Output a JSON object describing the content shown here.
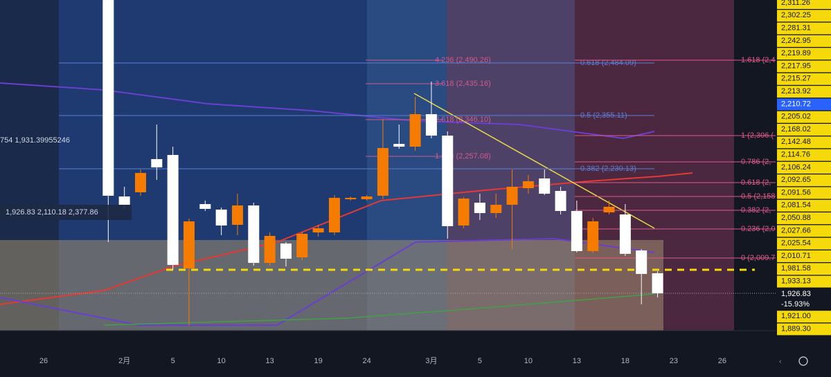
{
  "chart_data": {
    "type": "candlestick",
    "categories": [
      "26",
      null,
      null,
      null,
      null,
      "2月",
      null,
      null,
      "5",
      null,
      null,
      "10",
      null,
      null,
      "13",
      null,
      null,
      "19",
      null,
      null,
      "24",
      null,
      null,
      null,
      "3月",
      null,
      null,
      "5",
      null,
      null,
      "10",
      null,
      null,
      "13",
      null,
      null,
      "18",
      null,
      null,
      "23",
      null,
      null,
      "26"
    ],
    "open": [
      null,
      null,
      null,
      null,
      2361.4,
      2070.3,
      2076.5,
      2125.7,
      2131.8,
      1963.7,
      2059.0,
      2050.9,
      2028.3,
      2057.0,
      1971.9,
      2000.6,
      1980.1,
      2017.0,
      2017.0,
      2066.2,
      2066.2,
      2071.4,
      2148.2,
      2144.1,
      2192.3,
      2160.5,
      2027.3,
      2061.1,
      2045.7,
      2058.0,
      2082.6,
      2097.0,
      2078.5,
      2048.8,
      1989.4,
      2046.7,
      2043.7,
      1990.4,
      1956.5,
      null,
      null,
      null,
      null
    ],
    "high": [
      null,
      null,
      null,
      null,
      2361.4,
      2084.7,
      2110.3,
      2176.9,
      2144.1,
      2037.5,
      2064.2,
      2053.9,
      2074.4,
      2061.1,
      2017.0,
      2002.7,
      2018.0,
      2028.3,
      2072.4,
      2070.3,
      2072.4,
      2185.1,
      2176.9,
      2217.9,
      2240.5,
      2166.7,
      2069.3,
      2074.4,
      2074.4,
      2110.3,
      2102.1,
      2110.3,
      2084.7,
      2064.2,
      2038.5,
      2064.2,
      2059.0,
      1992.4,
      1959.6,
      null,
      null,
      null,
      null
    ],
    "low": [
      null,
      null,
      null,
      null,
      2002.7,
      2051.9,
      2071.4,
      2094.9,
      1961.7,
      1879.7,
      2048.8,
      2012.9,
      2012.9,
      1967.8,
      1967.8,
      1966.8,
      1976.0,
      2010.9,
      2012.9,
      2064.2,
      2064.2,
      2066.2,
      2141.0,
      2138.0,
      2156.4,
      2007.8,
      2023.2,
      2035.5,
      2038.5,
      1992.4,
      2074.4,
      2072.4,
      2043.7,
      1987.3,
      1986.3,
      2043.7,
      1982.2,
      1910.4,
      1920.7,
      null,
      null,
      null,
      null
    ],
    "close": [
      null,
      null,
      null,
      null,
      2071.4,
      2058.0,
      2105.2,
      2113.4,
      1968.9,
      2033.4,
      2051.9,
      2027.3,
      2057.0,
      1971.9,
      2011.9,
      1978.1,
      2015.0,
      2023.2,
      2068.3,
      2068.3,
      2070.3,
      2142.1,
      2144.1,
      2192.3,
      2160.5,
      2026.3,
      2067.2,
      2045.7,
      2058.0,
      2084.7,
      2092.9,
      2074.4,
      2048.8,
      1989.4,
      2033.4,
      2055.0,
      1985.3,
      1955.5,
      1926.83,
      null,
      null,
      null,
      null
    ],
    "up_color": "#f57c00",
    "down_color": "#ffffff",
    "ylim": [
      1871.48,
      2361.43
    ],
    "price_label_color": "#f5d90a",
    "price_labels": [
      {
        "text": "2,311.26"
      },
      {
        "text": "2,302.25"
      },
      {
        "text": "2,281.31"
      },
      {
        "text": "2,242.95"
      },
      {
        "text": "2,219.89"
      },
      {
        "text": "2,217.95"
      },
      {
        "text": "2,215.27"
      },
      {
        "text": "2,213.92"
      },
      {
        "text": "2,210.72",
        "color": "#2962ff"
      },
      {
        "text": "2,205.02"
      },
      {
        "text": "2,168.02"
      },
      {
        "text": "2,142.48"
      },
      {
        "text": "2,114.76"
      },
      {
        "text": "2,106.24"
      },
      {
        "text": "2,092.65"
      },
      {
        "text": "2,091.56"
      },
      {
        "text": "2,081.54"
      },
      {
        "text": "2,050.88"
      },
      {
        "text": "2,027.66"
      },
      {
        "text": "2,025.54"
      },
      {
        "text": "2,010.71"
      },
      {
        "text": "1,981.58"
      },
      {
        "text": "1,933.13"
      },
      {
        "text": "1,926.83",
        "change": "-15.93%",
        "color": "#131722"
      },
      {
        "text": "1,921.00"
      },
      {
        "text": "1,889.30"
      }
    ],
    "fib_labels_left": [
      "4.236 (2,490.26)",
      "3.618 (2,435.16)",
      "2.618 (2,346.10)",
      "1.618 (2,257.08)"
    ],
    "fib_labels_mid": [
      "0.618 (2,484.09)",
      "0.5 (2,355.11)",
      "0.382 (2,230.13)"
    ],
    "fib_labels_right": [
      "1.618 (2,4",
      "1 (2,306.(",
      "0.786 (2,",
      "0.618 (2,",
      "0.5 (2,158",
      "0.382 (2,",
      "0.236 (2,0",
      "0 (2,009.7"
    ],
    "overlay_text_1": "754  1,931.39955246",
    "overlay_text_2": "1,926.83  2,110.18  2,377.86"
  }
}
